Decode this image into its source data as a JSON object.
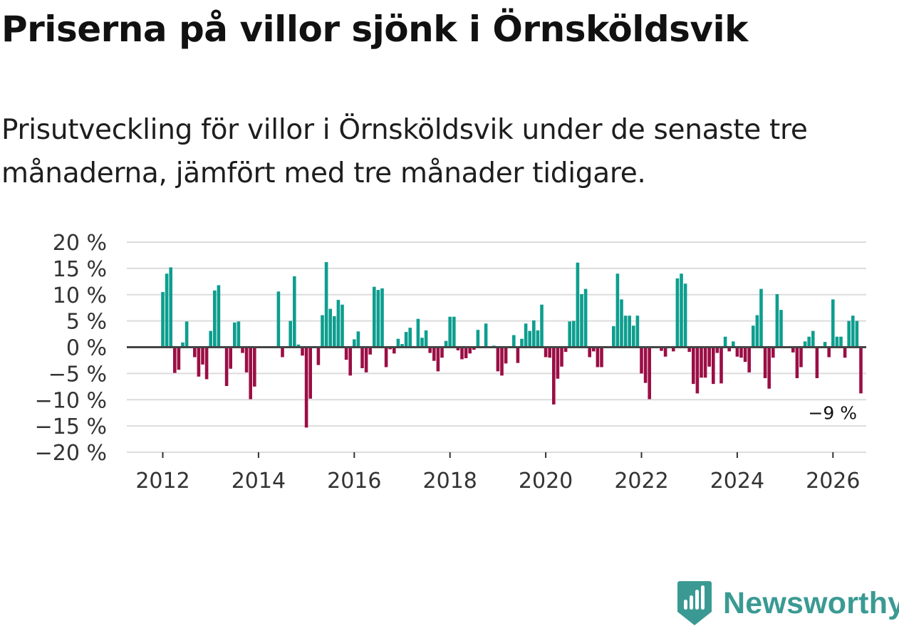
{
  "title": "Priserna på villor sjönk i Örnsköldsvik",
  "subtitle": "Prisutveckling för villor i Örnsköldsvik under de senaste tre månaderna, jämfört med tre månader tidigare.",
  "brand": {
    "name": "Newsworthy",
    "icon": "newsworthy-logo-icon"
  },
  "colors": {
    "positive": "#0d9e8f",
    "negative": "#9b0e45",
    "grid": "#dcdcdc",
    "zero": "#444444",
    "brand": "#3a9a93"
  },
  "chart_data": {
    "type": "bar",
    "title": "Priserna på villor sjönk i Örnsköldsvik",
    "xlabel": "",
    "ylabel": "",
    "ylim": [
      -20,
      20
    ],
    "yticks": [
      20,
      15,
      10,
      5,
      0,
      -5,
      -10,
      -15,
      -20
    ],
    "ytick_labels": [
      "20 %",
      "15 %",
      "10 %",
      "5 %",
      "0 %",
      "−5 %",
      "−10 %",
      "−15 %",
      "−20 %"
    ],
    "xticks": [
      "2012",
      "2014",
      "2016",
      "2018",
      "2020",
      "2022",
      "2024",
      "2026"
    ],
    "start_year": 2012,
    "start_month": 1,
    "values": [
      10.5,
      14.0,
      15.2,
      -4.9,
      -4.3,
      0.9,
      4.9,
      0.0,
      -1.9,
      -5.6,
      -3.3,
      -6.1,
      3.1,
      10.8,
      11.8,
      0.0,
      -7.4,
      -4.1,
      4.7,
      4.9,
      -1.1,
      -4.8,
      -9.9,
      -7.5,
      0.0,
      0.0,
      0.0,
      0.0,
      0.0,
      10.6,
      -1.9,
      0.0,
      5.0,
      13.5,
      0.5,
      -1.6,
      -15.3,
      -9.8,
      0.0,
      -3.4,
      6.1,
      16.2,
      7.3,
      5.9,
      9.0,
      8.1,
      -2.4,
      -5.4,
      1.5,
      3.0,
      -4.0,
      -4.8,
      -1.4,
      11.5,
      10.9,
      11.2,
      -3.8,
      -0.4,
      -1.2,
      1.6,
      0.6,
      2.9,
      3.7,
      0.0,
      5.4,
      1.8,
      3.2,
      -1.1,
      -2.6,
      -4.6,
      -2.0,
      1.2,
      5.8,
      5.8,
      -0.6,
      -2.3,
      -2.1,
      -1.2,
      -0.5,
      3.3,
      0.0,
      4.5,
      0.0,
      0.3,
      -4.6,
      -5.4,
      -3.1,
      0.0,
      2.3,
      -3.0,
      1.6,
      4.5,
      3.1,
      5.1,
      3.2,
      8.1,
      -1.9,
      -2.0,
      -10.9,
      -6.0,
      -3.7,
      -0.9,
      4.9,
      5.0,
      16.1,
      10.1,
      11.1,
      -1.9,
      -0.8,
      -3.8,
      -3.8,
      0.0,
      0.0,
      4.0,
      14.0,
      9.1,
      6.0,
      6.0,
      4.1,
      6.0,
      -5.0,
      -6.8,
      -9.9,
      0.0,
      0.0,
      -0.7,
      -1.8,
      0.0,
      -0.8,
      13.1,
      14.0,
      12.1,
      -0.9,
      -7.0,
      -8.8,
      -5.8,
      -5.8,
      -3.7,
      -7.0,
      -1.1,
      -6.9,
      2.0,
      -0.8,
      1.1,
      -1.8,
      -2.0,
      -2.8,
      -4.8,
      4.1,
      6.1,
      11.1,
      -5.9,
      -7.9,
      -2.0,
      10.1,
      7.1,
      0.0,
      0.0,
      -1.0,
      -5.9,
      -3.8,
      1.1,
      2.0,
      3.1,
      -5.9,
      0.0,
      1.0,
      -1.9,
      9.1,
      2.0,
      2.0,
      -2.0,
      5.0,
      6.0,
      5.0,
      -8.8
    ],
    "annotation": "−9 %"
  }
}
